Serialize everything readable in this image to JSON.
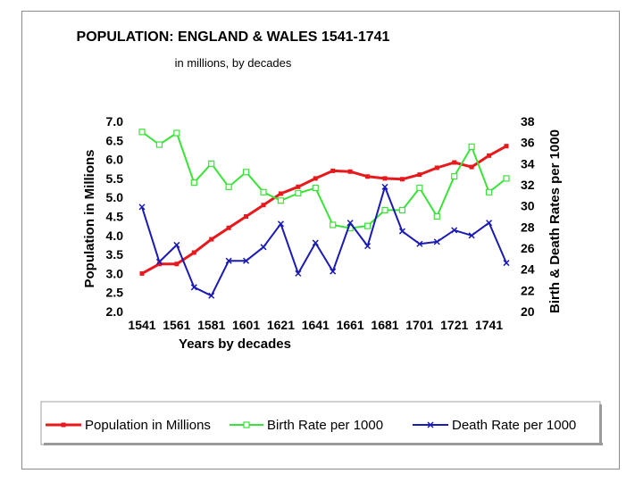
{
  "chart_data": {
    "type": "line",
    "title": "POPULATION: ENGLAND & WALES 1541-1741",
    "subtitle": "in millions, by  decades",
    "xlabel": "Years by decades",
    "ylabel_left": "Population in Millions",
    "ylabel_right": "Birth & Death Rates per 1000",
    "x": [
      1541,
      1551,
      1561,
      1571,
      1581,
      1591,
      1601,
      1611,
      1621,
      1631,
      1641,
      1651,
      1661,
      1671,
      1681,
      1691,
      1701,
      1711,
      1721,
      1731,
      1741,
      1751
    ],
    "x_tick_labels": [
      "1541",
      "1561",
      "1581",
      "1601",
      "1621",
      "1641",
      "1661",
      "1681",
      "1701",
      "1721",
      "1741"
    ],
    "x_tick_values": [
      1541,
      1561,
      1581,
      1601,
      1621,
      1641,
      1661,
      1681,
      1701,
      1721,
      1741
    ],
    "xlim": [
      1541,
      1751
    ],
    "ylim_left": [
      2.0,
      7.0
    ],
    "yticks_left": [
      "2.0",
      "2.5",
      "3.0",
      "3.5",
      "4.0",
      "4.5",
      "5.0",
      "5.5",
      "6.0",
      "6.5",
      "7.0"
    ],
    "ylim_right": [
      20,
      38
    ],
    "yticks_right": [
      "20",
      "22",
      "24",
      "26",
      "28",
      "30",
      "32",
      "34",
      "36",
      "38"
    ],
    "series": [
      {
        "name": "Population in Millions",
        "axis": "left",
        "color": "#e8191c",
        "marker": "dot",
        "values": [
          3.0,
          3.25,
          3.25,
          3.55,
          3.9,
          4.2,
          4.5,
          4.8,
          5.1,
          5.28,
          5.5,
          5.7,
          5.68,
          5.55,
          5.5,
          5.48,
          5.6,
          5.78,
          5.92,
          5.8,
          6.1,
          6.35
        ]
      },
      {
        "name": "Birth Rate per 1000",
        "axis": "right",
        "color": "#39e339",
        "marker": "square",
        "values": [
          37.0,
          35.8,
          36.9,
          32.2,
          34.0,
          31.8,
          33.2,
          31.3,
          30.5,
          31.2,
          31.7,
          28.2,
          27.9,
          28.1,
          29.6,
          29.6,
          31.7,
          29.0,
          32.8,
          35.6,
          31.3,
          32.6
        ]
      },
      {
        "name": "Death Rate per 1000",
        "axis": "right",
        "color": "#1a1ab4",
        "marker": "x",
        "values": [
          29.9,
          24.7,
          26.3,
          22.3,
          21.5,
          24.8,
          24.8,
          26.1,
          28.3,
          23.6,
          26.5,
          23.8,
          28.4,
          26.2,
          31.8,
          27.6,
          26.4,
          26.6,
          27.7,
          27.2,
          28.4,
          24.6
        ]
      }
    ],
    "legend": {
      "placement": "bottom",
      "entries": [
        "Population in Millions",
        "Birth Rate per 1000",
        "Death Rate per 1000"
      ]
    }
  }
}
